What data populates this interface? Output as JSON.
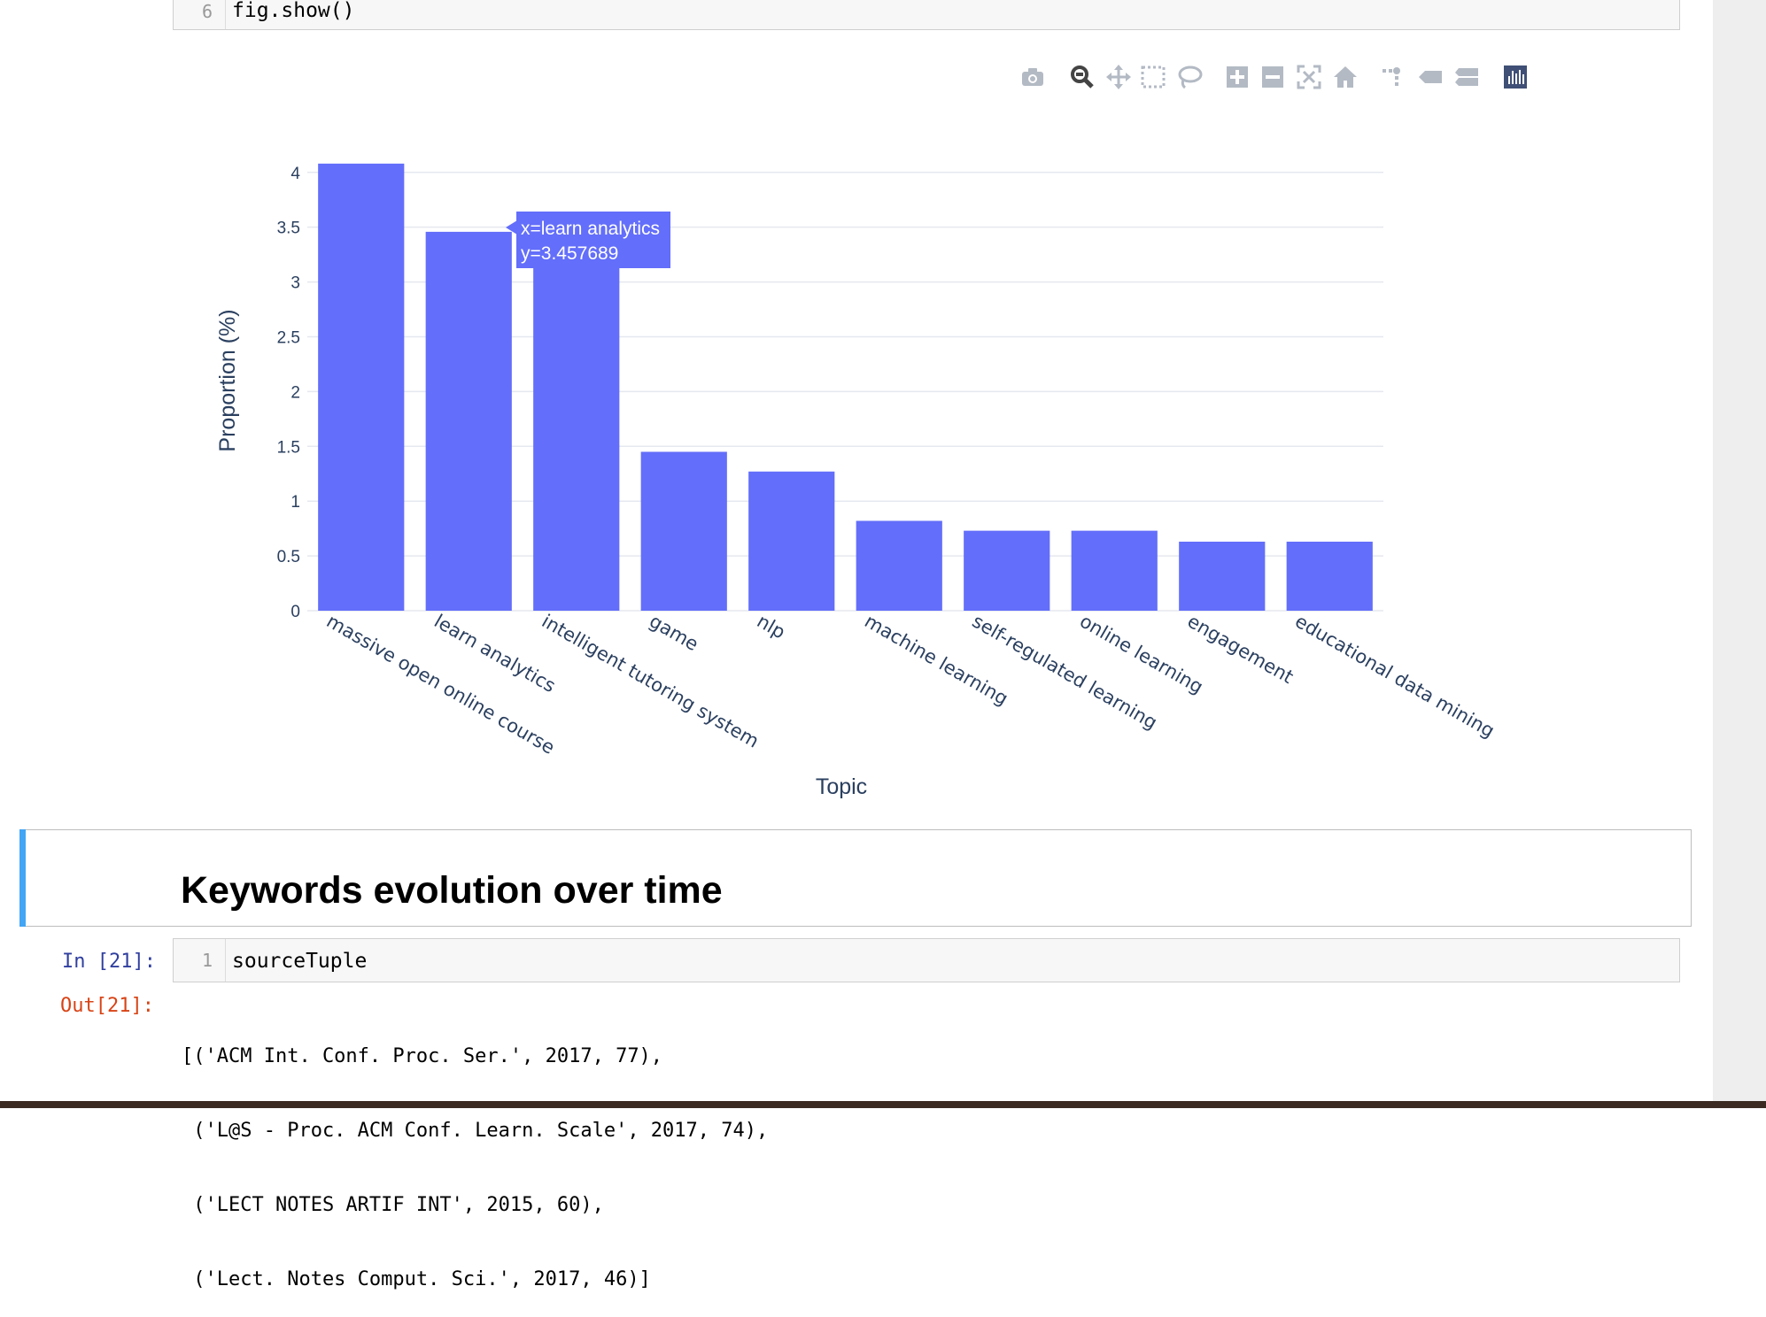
{
  "top_cell": {
    "line_number": "6",
    "code": "fig.show()"
  },
  "modebar": {
    "icons": [
      "camera-icon",
      "zoom-icon",
      "pan-icon",
      "box-select-icon",
      "lasso-select-icon",
      "zoom-in-icon",
      "zoom-out-icon",
      "autoscale-icon",
      "reset-axes-icon",
      "spike-lines-icon",
      "hover-closest-icon",
      "hover-compare-icon",
      "plotly-logo-icon"
    ],
    "color": "#b3bac4"
  },
  "chart_data": {
    "type": "bar",
    "categories": [
      "massive open online course",
      "learn analytics",
      "intelligent tutoring system",
      "game",
      "nlp",
      "machine learning",
      "self-regulated learning",
      "online learning",
      "engagement",
      "educational data mining"
    ],
    "values": [
      4.08,
      3.457689,
      3.18,
      1.45,
      1.27,
      0.82,
      0.73,
      0.73,
      0.63,
      0.63
    ],
    "xlabel": "Topic",
    "ylabel": "Proportion (%)",
    "ylim": [
      0,
      4.2
    ],
    "yticks": [
      "0",
      "0.5",
      "1",
      "1.5",
      "2",
      "2.5",
      "3",
      "3.5",
      "4"
    ],
    "grid": true,
    "bar_color": "#636efa",
    "hover": {
      "line1": "x=learn analytics",
      "line2": "y=3.457689"
    }
  },
  "markdown": {
    "heading": "Keywords evolution over time"
  },
  "cell_in": {
    "prompt": "In [21]:",
    "line_number": "1",
    "code": "sourceTuple"
  },
  "cell_out": {
    "prompt": "Out[21]:",
    "lines": [
      "[('ACM Int. Conf. Proc. Ser.', 2017, 77),",
      " ('L@S - Proc. ACM Conf. Learn. Scale', 2017, 74),",
      " ('LECT NOTES ARTIF INT', 2015, 60),",
      " ('Lect. Notes Comput. Sci.', 2017, 46)]"
    ]
  }
}
